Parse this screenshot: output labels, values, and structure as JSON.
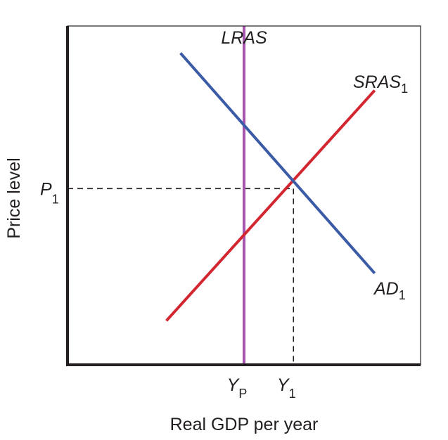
{
  "chart_data": {
    "type": "line",
    "title": "",
    "xlabel": "Real GDP per year",
    "ylabel": "Price level",
    "xlim": [
      0,
      100
    ],
    "ylim": [
      0,
      100
    ],
    "grid": false,
    "legend": "none",
    "x_ticks": [
      {
        "main": "Y",
        "sub": "P",
        "value": 50
      },
      {
        "main": "Y",
        "sub": "1",
        "value": 64
      }
    ],
    "y_ticks": [
      {
        "main": "P",
        "sub": "1",
        "value": 52
      }
    ],
    "series": [
      {
        "main": "LRAS",
        "sub": "",
        "color": "#a855b0",
        "points": [
          [
            50,
            0
          ],
          [
            50,
            100
          ]
        ]
      },
      {
        "main": "SRAS",
        "sub": "1",
        "color": "#d22630",
        "points": [
          [
            28,
            13
          ],
          [
            87,
            81
          ]
        ]
      },
      {
        "main": "AD",
        "sub": "1",
        "color": "#3b5ba6",
        "points": [
          [
            32,
            92
          ],
          [
            87,
            27
          ]
        ]
      }
    ],
    "guides": [
      {
        "from": [
          0,
          52
        ],
        "to": [
          64,
          52
        ]
      },
      {
        "from": [
          64,
          52
        ],
        "to": [
          64,
          0
        ]
      }
    ]
  }
}
